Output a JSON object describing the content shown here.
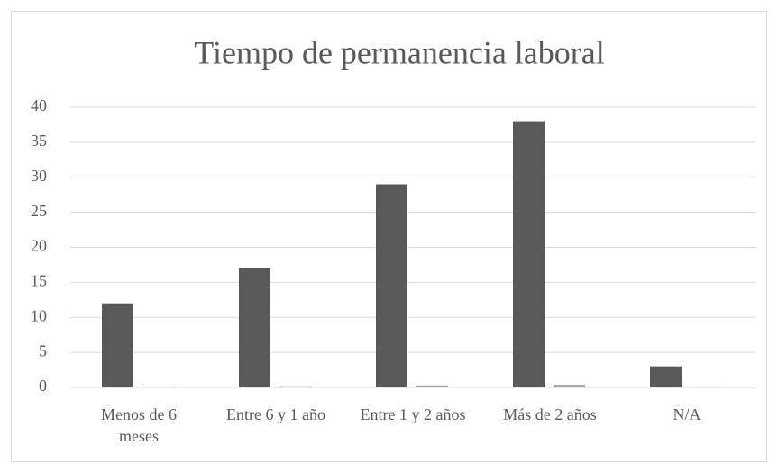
{
  "chart_data": {
    "type": "bar",
    "title": "Tiempo de permanencia laboral",
    "categories": [
      "Menos de 6 meses",
      "Entre 6 y 1 año",
      "Entre 1 y 2 años",
      "Más de 2 años",
      "N/A"
    ],
    "series": [
      {
        "color": "#595959",
        "values": [
          12,
          17,
          29,
          38,
          3
        ]
      },
      {
        "color": "#a5a5a5",
        "values": [
          0.12,
          0.17,
          0.29,
          0.38,
          0.03
        ]
      }
    ],
    "ylim": [
      0,
      40
    ],
    "yticks": [
      0,
      5,
      10,
      15,
      20,
      25,
      30,
      35,
      40
    ],
    "grid": true
  }
}
